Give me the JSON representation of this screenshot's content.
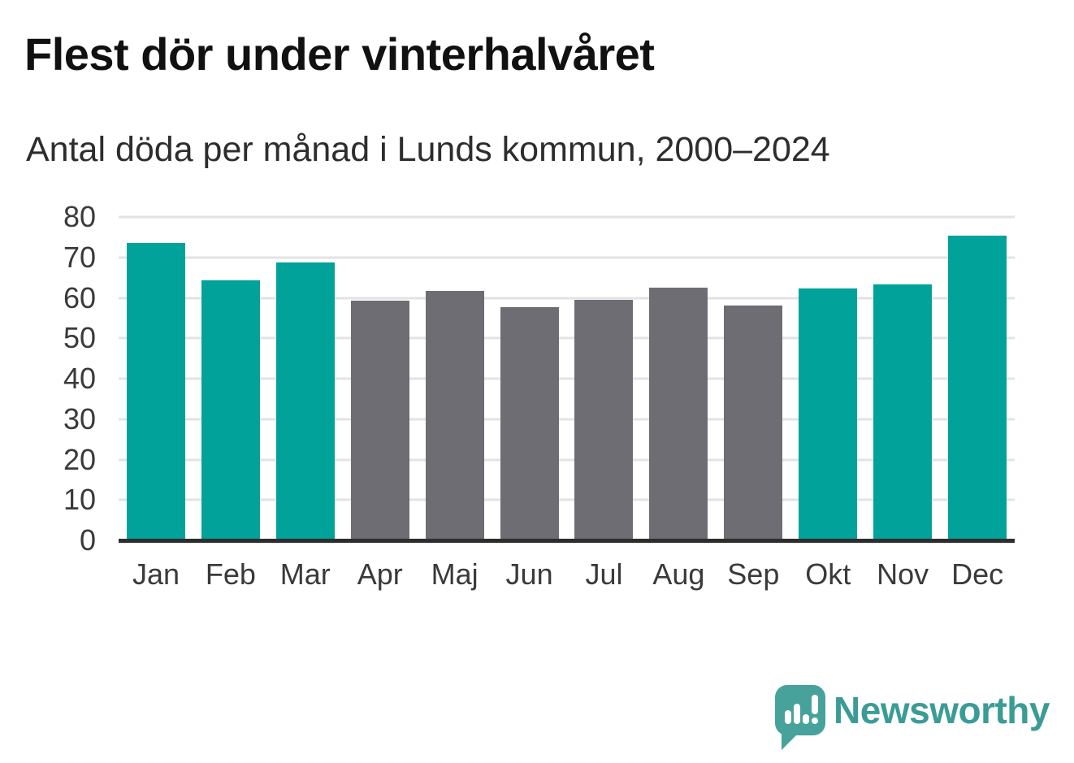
{
  "header": {
    "title": "Flest dör under vinterhalvåret",
    "subtitle": "Antal döda per månad i Lunds kommun, 2000–2024"
  },
  "chart_data": {
    "type": "bar",
    "title": "Flest dör under vinterhalvåret",
    "subtitle": "Antal döda per månad i Lunds kommun, 2000–2024",
    "categories": [
      "Jan",
      "Feb",
      "Mar",
      "Apr",
      "Maj",
      "Jun",
      "Jul",
      "Aug",
      "Sep",
      "Okt",
      "Nov",
      "Dec"
    ],
    "values": [
      73.5,
      64.4,
      68.8,
      59.2,
      61.7,
      57.7,
      59.5,
      62.6,
      58.1,
      62.3,
      63.4,
      75.4
    ],
    "highlighted": [
      true,
      true,
      true,
      false,
      false,
      false,
      false,
      false,
      false,
      true,
      true,
      true
    ],
    "xlabel": "",
    "ylabel": "",
    "ylim": [
      0,
      80
    ],
    "yticks": [
      0,
      10,
      20,
      30,
      40,
      50,
      60,
      70,
      80
    ],
    "grid": true,
    "legend": false,
    "colors": {
      "highlight": "#00a29a",
      "muted": "#6e6d73",
      "gridline": "#e3e3e3",
      "axis": "#2d2d2d"
    }
  },
  "footer": {
    "brand": "Newsworthy",
    "brand_color": "#3a9c95",
    "logo_icon": "speech-bubble-bar-chart-icon"
  }
}
